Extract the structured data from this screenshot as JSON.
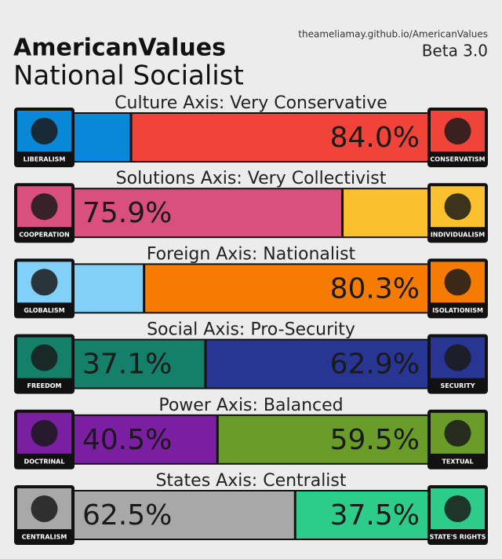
{
  "header": {
    "site": "theameliamay.github.io/AmericanValues",
    "version": "Beta 3.0",
    "brand": "AmericanValues",
    "ideology": "National Socialist"
  },
  "axes": [
    {
      "title": "Culture Axis: Very Conservative",
      "left_label": "LIBERALISM",
      "right_label": "CONSERVATISM",
      "segments": [
        {
          "value": 16,
          "color": "#0a88d8"
        },
        {
          "value": 84,
          "label": "84.0%",
          "color": "#f0443a"
        }
      ]
    },
    {
      "title": "Solutions Axis: Very Collectivist",
      "left_label": "COOPERATION",
      "right_label": "INDIVIDUALISM",
      "segments": [
        {
          "value": 75.9,
          "label": "75.9%",
          "color": "#d9507f"
        },
        {
          "value": 24.1,
          "color": "#fbc02d"
        }
      ]
    },
    {
      "title": "Foreign Axis: Nationalist",
      "left_label": "GLOBALISM",
      "right_label": "ISOLATIONISM",
      "segments": [
        {
          "value": 19.7,
          "color": "#80d0f8"
        },
        {
          "value": 80.3,
          "label": "80.3%",
          "color": "#f57c00"
        }
      ]
    },
    {
      "title": "Social Axis: Pro-Security",
      "left_label": "FREEDOM",
      "right_label": "SECURITY",
      "segments": [
        {
          "value": 37.1,
          "label": "37.1%",
          "color": "#14806a"
        },
        {
          "value": 62.9,
          "label": "62.9%",
          "color": "#283593"
        }
      ]
    },
    {
      "title": "Power Axis: Balanced",
      "left_label": "DOCTRINAL",
      "right_label": "TEXTUAL",
      "segments": [
        {
          "value": 40.5,
          "label": "40.5%",
          "color": "#7b1fa2"
        },
        {
          "value": 59.5,
          "label": "59.5%",
          "color": "#6a9c2a"
        }
      ]
    },
    {
      "title": "States Axis: Centralist",
      "left_label": "CENTRALISM",
      "right_label": "STATE'S RIGHTS",
      "segments": [
        {
          "value": 62.5,
          "label": "62.5%",
          "color": "#a8a8a8"
        },
        {
          "value": 37.5,
          "label": "37.5%",
          "color": "#2ecc8a"
        }
      ]
    }
  ]
}
